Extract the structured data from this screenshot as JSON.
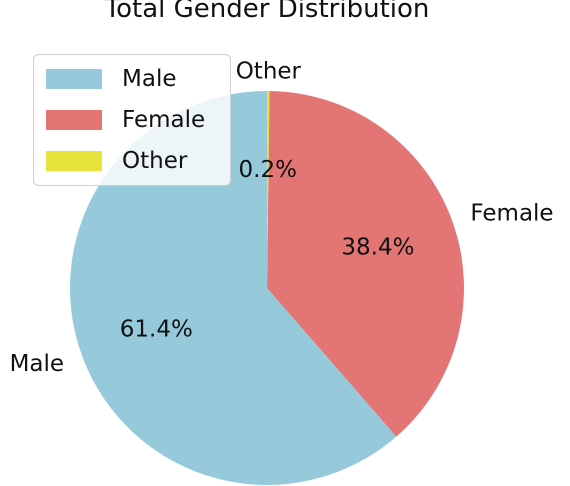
{
  "chart_data": {
    "type": "pie",
    "title": "Total Gender Distribution",
    "slices": [
      {
        "label": "Male",
        "value": 61.4,
        "pct_label": "61.4%",
        "color": "#96cadb"
      },
      {
        "label": "Female",
        "value": 38.4,
        "pct_label": "38.4%",
        "color": "#e37575"
      },
      {
        "label": "Other",
        "value": 0.2,
        "pct_label": "0.2%",
        "color": "#e8e23c"
      }
    ],
    "legend": {
      "placement": "upper-left",
      "items": [
        {
          "label": "Male",
          "color": "#96cadb"
        },
        {
          "label": "Female",
          "color": "#e37575"
        },
        {
          "label": "Other",
          "color": "#e8e23c"
        }
      ]
    }
  }
}
